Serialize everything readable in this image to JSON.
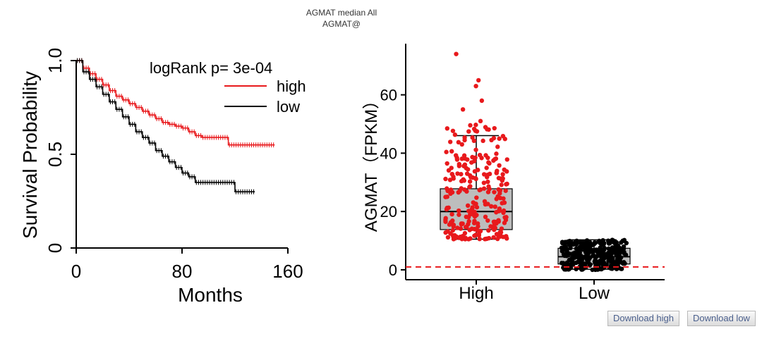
{
  "header": {
    "title_line1": "AGMAT median All",
    "title_line2": "AGMAT@"
  },
  "buttons": {
    "download_high": "Download high",
    "download_low": "Download low"
  },
  "colors": {
    "high": "#e8191c",
    "low": "#000000",
    "box_fill": "#bdbdbd",
    "cutoff": "#e8191c"
  },
  "chart_data": [
    {
      "type": "line",
      "subtype": "kaplan-meier",
      "xlabel": "Months",
      "ylabel": "Survival Probability",
      "xlim": [
        0,
        160
      ],
      "ylim": [
        0,
        1
      ],
      "xticks": [
        "0",
        "80",
        "160"
      ],
      "yticks": [
        "0",
        "0.5",
        "1.0"
      ],
      "annotation": "logRank p= 3e-04",
      "legend_position": "top-right",
      "series": [
        {
          "name": "high",
          "x": [
            0,
            5,
            10,
            15,
            20,
            25,
            30,
            35,
            40,
            45,
            50,
            55,
            60,
            65,
            70,
            75,
            80,
            85,
            90,
            95,
            100,
            105,
            110,
            115,
            120,
            125,
            130,
            135,
            140,
            145,
            150
          ],
          "y": [
            1.0,
            0.96,
            0.93,
            0.9,
            0.87,
            0.84,
            0.81,
            0.79,
            0.77,
            0.75,
            0.73,
            0.71,
            0.69,
            0.67,
            0.66,
            0.65,
            0.64,
            0.62,
            0.6,
            0.59,
            0.59,
            0.59,
            0.59,
            0.55,
            0.55,
            0.55,
            0.55,
            0.55,
            0.55,
            0.55,
            0.55
          ]
        },
        {
          "name": "low",
          "x": [
            0,
            5,
            10,
            15,
            20,
            25,
            30,
            35,
            40,
            45,
            50,
            55,
            60,
            65,
            70,
            75,
            80,
            85,
            90,
            95,
            100,
            105,
            110,
            115,
            120,
            125,
            130,
            135
          ],
          "y": [
            1.0,
            0.94,
            0.9,
            0.86,
            0.82,
            0.78,
            0.74,
            0.7,
            0.66,
            0.62,
            0.59,
            0.56,
            0.52,
            0.49,
            0.46,
            0.43,
            0.4,
            0.38,
            0.35,
            0.35,
            0.35,
            0.35,
            0.35,
            0.35,
            0.3,
            0.3,
            0.3,
            0.3
          ]
        }
      ]
    },
    {
      "type": "box",
      "ylabel": "AGMAT（FPKM）",
      "categories": [
        "High",
        "Low"
      ],
      "ylim": [
        -2,
        77
      ],
      "yticks": [
        "0",
        "20",
        "40",
        "60"
      ],
      "cutoff_line": 1,
      "boxes": [
        {
          "name": "High",
          "min": 10.5,
          "q1": 13.8,
          "median": 20,
          "q3": 27.8,
          "max": 46
        },
        {
          "name": "Low",
          "min": 0.2,
          "q1": 2.0,
          "median": 4.5,
          "q3": 7.4,
          "max": 10.3
        }
      ],
      "outliers_high": [
        51,
        55,
        58,
        63,
        65,
        74
      ],
      "jitter_points": {
        "high_count": 260,
        "low_count": 320,
        "high_range": [
          10.5,
          50
        ],
        "low_range": [
          0,
          10.3
        ]
      }
    }
  ]
}
